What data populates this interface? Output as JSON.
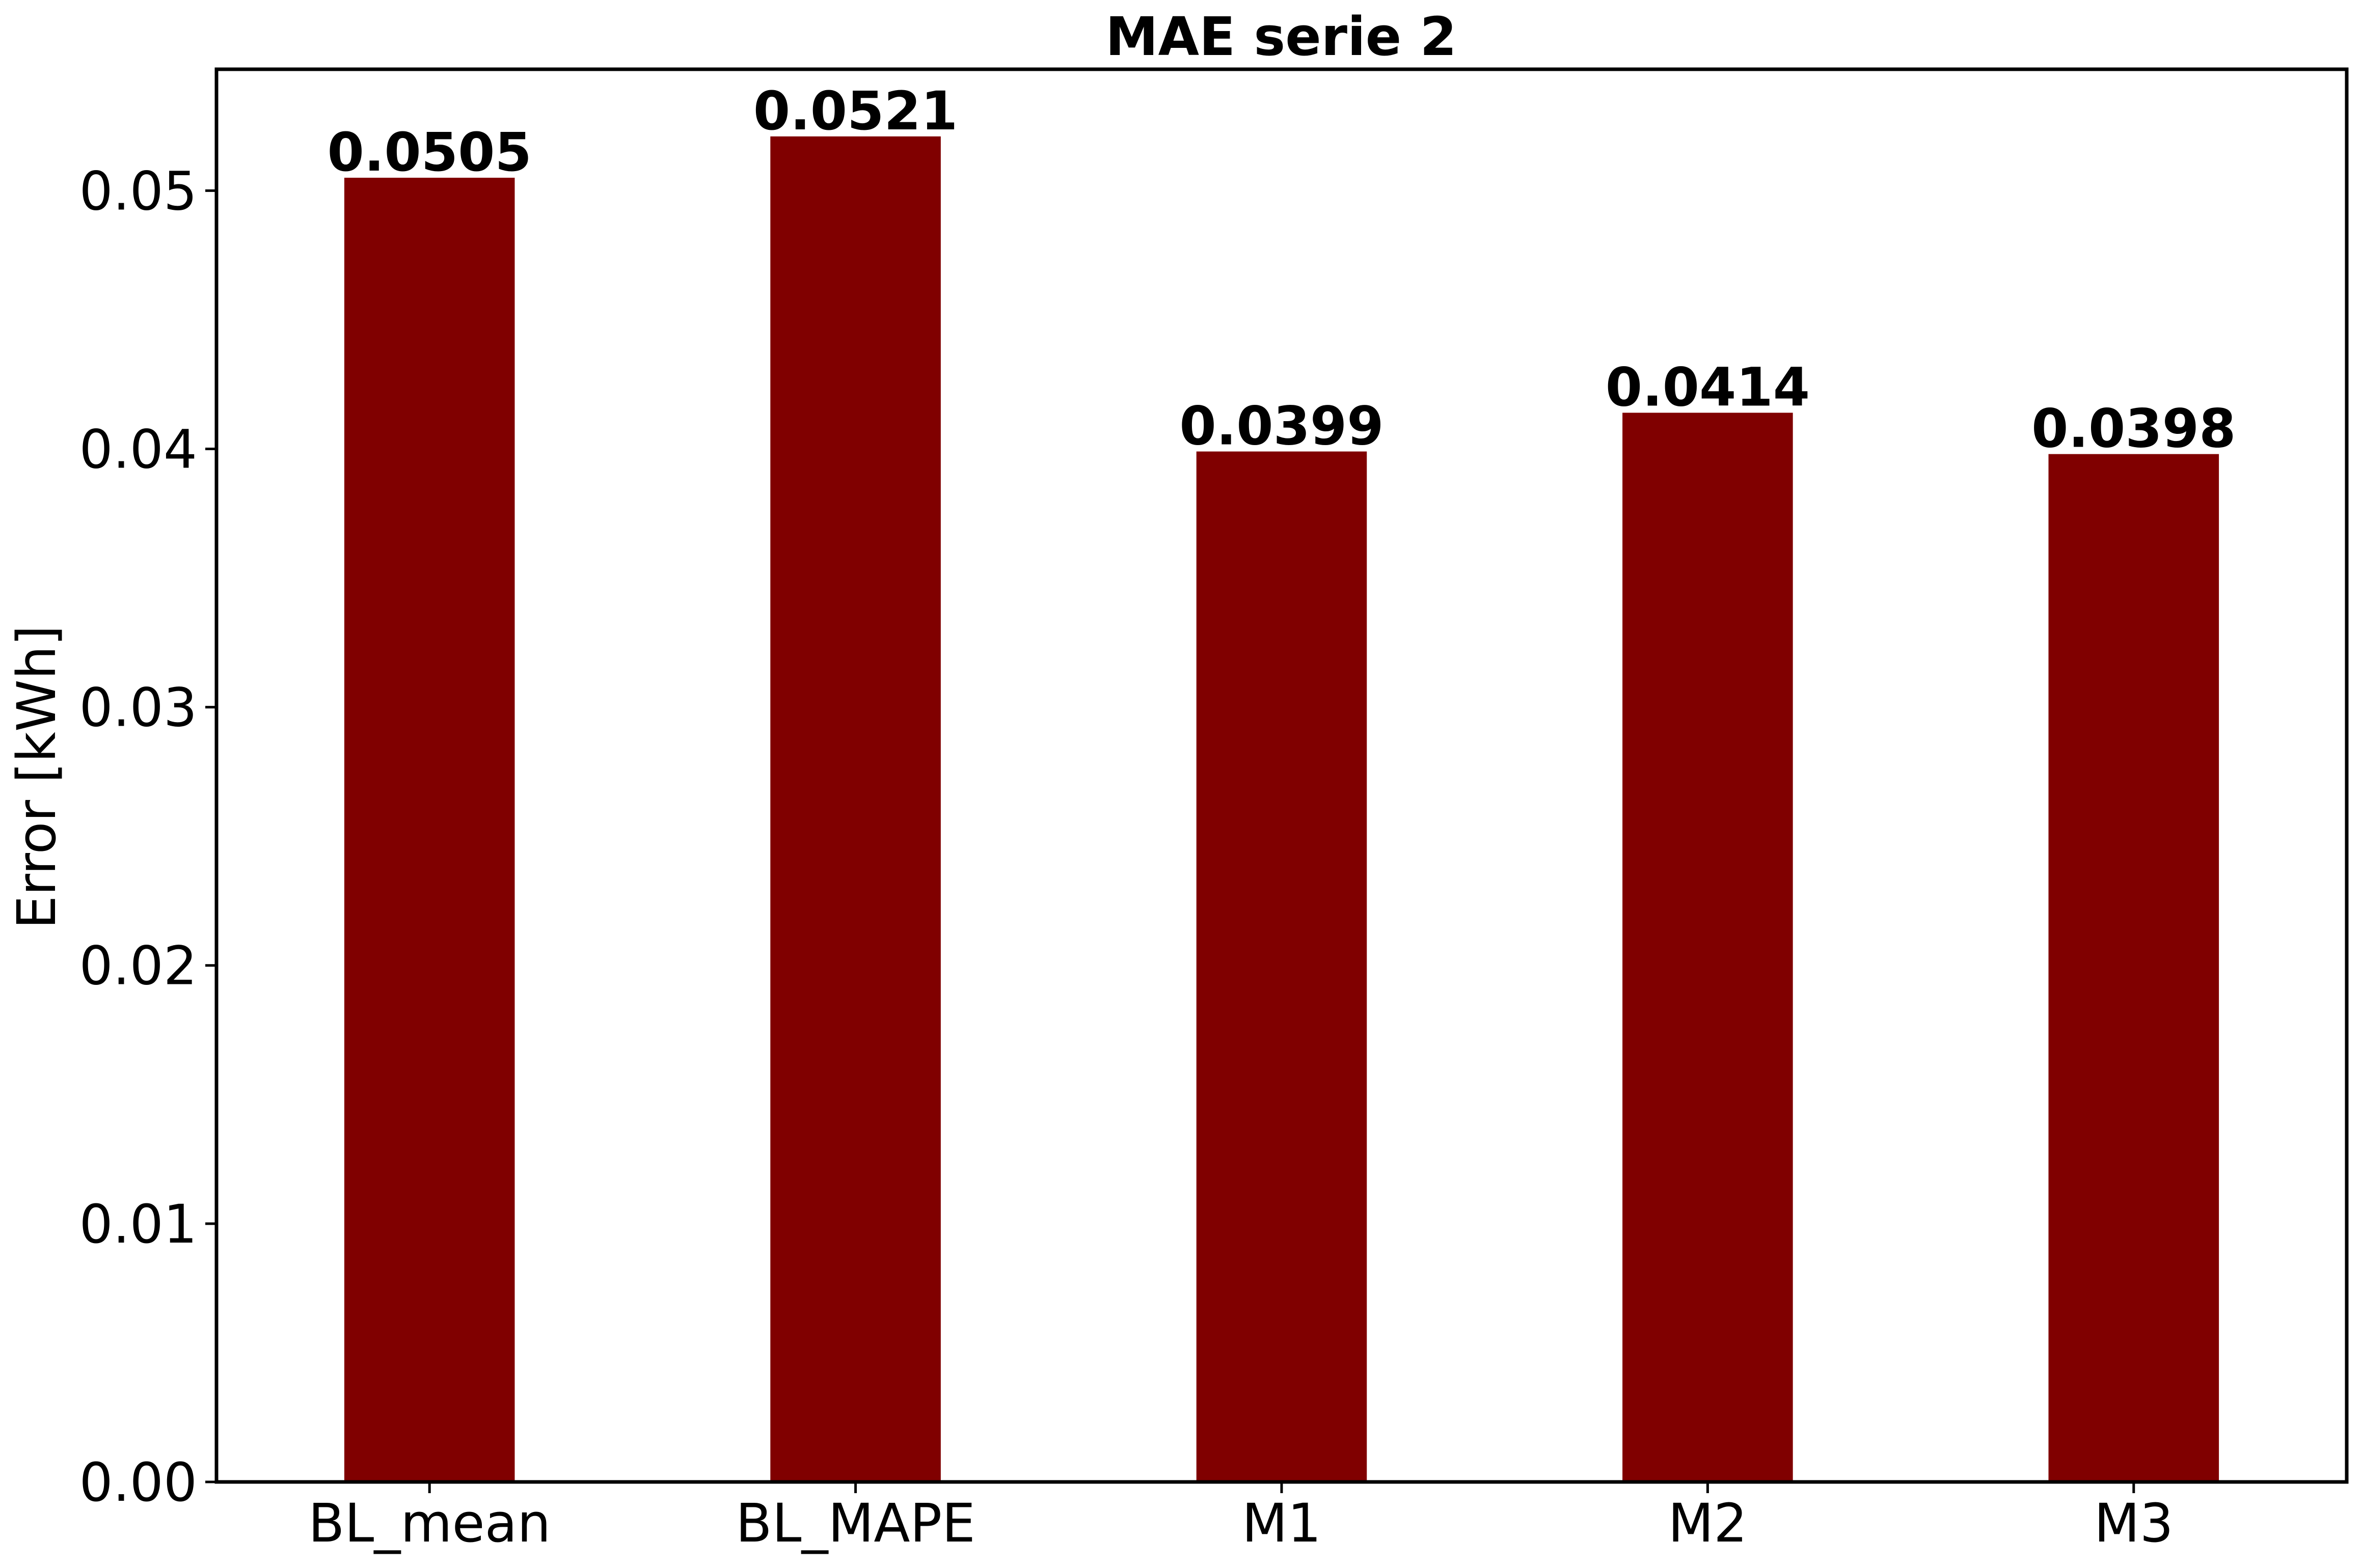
{
  "chart_data": {
    "type": "bar",
    "title": "MAE serie 2",
    "xlabel": "",
    "ylabel": "Error [kWh]",
    "categories": [
      "BL_mean",
      "BL_MAPE",
      "M1",
      "M2",
      "M3"
    ],
    "values": [
      0.0505,
      0.0521,
      0.0399,
      0.0414,
      0.0398
    ],
    "value_labels": [
      "0.0505",
      "0.0521",
      "0.0399",
      "0.0414",
      "0.0398"
    ],
    "ylim": [
      0,
      0.0547
    ],
    "yticks": [
      0.0,
      0.01,
      0.02,
      0.03,
      0.04,
      0.05
    ],
    "ytick_labels": [
      "0.00",
      "0.01",
      "0.02",
      "0.03",
      "0.04",
      "0.05"
    ],
    "bar_color": "#800000",
    "grid": false,
    "legend": "none"
  }
}
